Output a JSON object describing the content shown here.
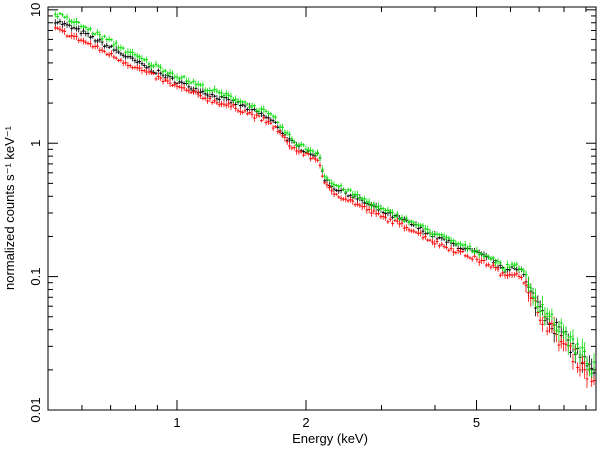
{
  "chart_data": {
    "type": "scatter",
    "title": "",
    "xlabel": "Energy (keV)",
    "ylabel": "normalized counts s⁻¹ keV⁻¹",
    "x_scale": "log",
    "y_scale": "log",
    "xlim": [
      0.5,
      9.5
    ],
    "ylim": [
      0.01,
      10.5
    ],
    "grid": false,
    "legend": "none",
    "x_major_ticks": [
      {
        "value": 1,
        "label": "1"
      },
      {
        "value": 2,
        "label": "2"
      },
      {
        "value": 5,
        "label": "5"
      }
    ],
    "x_minor_ticks": [
      0.6,
      0.7,
      0.8,
      0.9,
      3,
      4,
      6,
      7,
      8,
      9
    ],
    "y_major_ticks": [
      {
        "value": 0.01,
        "label": "0.01"
      },
      {
        "value": 0.1,
        "label": "0.1"
      },
      {
        "value": 1,
        "label": "1"
      },
      {
        "value": 10,
        "label": "10"
      }
    ],
    "y_minor_ticks": [
      0.02,
      0.03,
      0.04,
      0.05,
      0.06,
      0.07,
      0.08,
      0.09,
      0.2,
      0.3,
      0.4,
      0.5,
      0.6,
      0.7,
      0.8,
      0.9,
      2,
      3,
      4,
      5,
      6,
      7,
      8,
      9
    ],
    "series": [
      {
        "color": "#000000",
        "points": [
          [
            0.52,
            8.3
          ],
          [
            0.6,
            6.8
          ],
          [
            0.7,
            5.2
          ],
          [
            0.8,
            4.1
          ],
          [
            0.9,
            3.4
          ],
          [
            1.0,
            2.9
          ],
          [
            1.2,
            2.3
          ],
          [
            1.4,
            1.95
          ],
          [
            1.6,
            1.6
          ],
          [
            1.7,
            1.4
          ],
          [
            1.8,
            1.1
          ],
          [
            1.9,
            0.95
          ],
          [
            2.0,
            0.88
          ],
          [
            2.1,
            0.82
          ],
          [
            2.15,
            0.8
          ],
          [
            2.2,
            0.55
          ],
          [
            2.3,
            0.47
          ],
          [
            2.5,
            0.42
          ],
          [
            3.0,
            0.31
          ],
          [
            3.5,
            0.25
          ],
          [
            4.0,
            0.2
          ],
          [
            4.5,
            0.17
          ],
          [
            5.0,
            0.15
          ],
          [
            5.5,
            0.13
          ],
          [
            5.8,
            0.11
          ],
          [
            6.1,
            0.12
          ],
          [
            6.4,
            0.11
          ],
          [
            6.6,
            0.078
          ],
          [
            7.0,
            0.06
          ],
          [
            7.5,
            0.045
          ],
          [
            8.0,
            0.035
          ],
          [
            8.5,
            0.028
          ],
          [
            9.0,
            0.022
          ],
          [
            9.4,
            0.018
          ]
        ]
      },
      {
        "color": "#ff0000",
        "points": [
          [
            0.52,
            7.2
          ],
          [
            0.6,
            5.9
          ],
          [
            0.7,
            4.6
          ],
          [
            0.8,
            3.7
          ],
          [
            0.9,
            3.1
          ],
          [
            1.0,
            2.65
          ],
          [
            1.2,
            2.1
          ],
          [
            1.4,
            1.8
          ],
          [
            1.6,
            1.48
          ],
          [
            1.7,
            1.3
          ],
          [
            1.8,
            1.03
          ],
          [
            1.9,
            0.88
          ],
          [
            2.0,
            0.82
          ],
          [
            2.1,
            0.76
          ],
          [
            2.15,
            0.74
          ],
          [
            2.2,
            0.5
          ],
          [
            2.3,
            0.43
          ],
          [
            2.5,
            0.38
          ],
          [
            3.0,
            0.28
          ],
          [
            3.5,
            0.23
          ],
          [
            4.0,
            0.18
          ],
          [
            4.5,
            0.155
          ],
          [
            5.0,
            0.135
          ],
          [
            5.5,
            0.118
          ],
          [
            5.8,
            0.1
          ],
          [
            6.1,
            0.108
          ],
          [
            6.4,
            0.1
          ],
          [
            6.6,
            0.07
          ],
          [
            7.0,
            0.054
          ],
          [
            7.5,
            0.04
          ],
          [
            8.0,
            0.031
          ],
          [
            8.5,
            0.025
          ],
          [
            9.0,
            0.02
          ],
          [
            9.4,
            0.016
          ]
        ]
      },
      {
        "color": "#00dd00",
        "points": [
          [
            0.52,
            9.4
          ],
          [
            0.6,
            7.6
          ],
          [
            0.7,
            5.8
          ],
          [
            0.8,
            4.5
          ],
          [
            0.9,
            3.75
          ],
          [
            1.0,
            3.2
          ],
          [
            1.2,
            2.5
          ],
          [
            1.4,
            2.1
          ],
          [
            1.6,
            1.72
          ],
          [
            1.7,
            1.5
          ],
          [
            1.8,
            1.18
          ],
          [
            1.9,
            1.0
          ],
          [
            2.0,
            0.92
          ],
          [
            2.1,
            0.86
          ],
          [
            2.15,
            0.84
          ],
          [
            2.2,
            0.58
          ],
          [
            2.3,
            0.5
          ],
          [
            2.5,
            0.44
          ],
          [
            3.0,
            0.32
          ],
          [
            3.5,
            0.26
          ],
          [
            4.0,
            0.21
          ],
          [
            4.5,
            0.178
          ],
          [
            5.0,
            0.155
          ],
          [
            5.5,
            0.135
          ],
          [
            5.8,
            0.115
          ],
          [
            6.1,
            0.125
          ],
          [
            6.4,
            0.115
          ],
          [
            6.6,
            0.082
          ],
          [
            7.0,
            0.064
          ],
          [
            7.5,
            0.048
          ],
          [
            8.0,
            0.037
          ],
          [
            8.5,
            0.03
          ],
          [
            9.0,
            0.024
          ],
          [
            9.4,
            0.02
          ]
        ]
      }
    ]
  }
}
